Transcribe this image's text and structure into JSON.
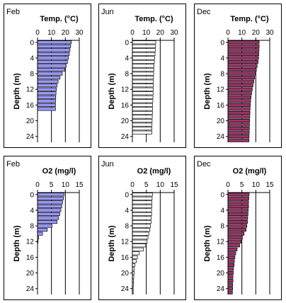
{
  "chart_data": [
    {
      "type": "bar",
      "panel_label": "Feb",
      "title": "Temp. (°C)",
      "ylabel": "Depth (m)",
      "xlim": [
        0,
        30
      ],
      "ylim": [
        25.5,
        -0.5
      ],
      "x_ticks": [
        "0",
        "10",
        "20",
        "30"
      ],
      "y_ticks": [
        "0",
        "4",
        "8",
        "12",
        "16",
        "20",
        "24"
      ],
      "bar_color": "#9999ff",
      "depths": [
        0,
        1,
        2,
        3,
        4,
        5,
        6,
        7,
        8,
        9,
        10,
        11,
        12,
        13,
        14,
        15,
        16,
        17
      ],
      "values": [
        24.3,
        23.8,
        23.3,
        22.8,
        22.2,
        21.5,
        20.6,
        19.5,
        17.8,
        16.2,
        14.8,
        14.0,
        13.6,
        13.3,
        13.1,
        13.0,
        12.9,
        12.9
      ]
    },
    {
      "type": "bar",
      "panel_label": "Jun",
      "title": "Temp. (°C)",
      "ylabel": "Depth (m)",
      "xlim": [
        0,
        30
      ],
      "ylim": [
        25.5,
        -0.5
      ],
      "x_ticks": [
        "0",
        "10",
        "20",
        "30"
      ],
      "y_ticks": [
        "0",
        "4",
        "8",
        "12",
        "16",
        "20",
        "24"
      ],
      "bar_color": "#ffffff",
      "depths": [
        0,
        1,
        2,
        3,
        4,
        5,
        6,
        7,
        8,
        9,
        10,
        11,
        12,
        13,
        14,
        15,
        16,
        17,
        18,
        19,
        20,
        21,
        22,
        23
      ],
      "values": [
        16.8,
        16.7,
        16.5,
        16.3,
        16.0,
        15.8,
        15.6,
        15.4,
        15.3,
        15.2,
        15.1,
        15.0,
        15.0,
        14.9,
        14.8,
        14.7,
        14.6,
        14.5,
        14.4,
        14.3,
        14.2,
        14.1,
        14.0,
        14.0
      ]
    },
    {
      "type": "bar",
      "panel_label": "Dec",
      "title": "Temp. (°C)",
      "ylabel": "Depth (m)",
      "xlim": [
        0,
        30
      ],
      "ylim": [
        25.5,
        -0.5
      ],
      "x_ticks": [
        "0",
        "10",
        "20",
        "30"
      ],
      "y_ticks": [
        "0",
        "4",
        "8",
        "12",
        "16",
        "20",
        "24"
      ],
      "bar_color": "#993366",
      "depths": [
        0,
        1,
        2,
        3,
        4,
        5,
        6,
        7,
        8,
        9,
        10,
        11,
        12,
        13,
        14,
        15,
        16,
        17,
        18,
        19,
        20,
        21,
        22,
        23,
        24,
        25
      ],
      "values": [
        22.4,
        22.4,
        22.3,
        22.2,
        22.0,
        21.6,
        21.0,
        20.4,
        19.9,
        19.2,
        18.6,
        18.0,
        17.5,
        17.0,
        16.6,
        16.3,
        16.1,
        15.9,
        15.8,
        15.7,
        15.6,
        15.5,
        15.4,
        15.3,
        15.2,
        15.1
      ]
    },
    {
      "type": "bar",
      "panel_label": "Feb",
      "title": "O2 (mg/l)",
      "ylabel": "Depth (m)",
      "xlim": [
        0,
        15
      ],
      "ylim": [
        25.5,
        -0.5
      ],
      "x_ticks": [
        "0",
        "5",
        "10",
        "15"
      ],
      "y_ticks": [
        "0",
        "4",
        "8",
        "12",
        "16",
        "20",
        "24"
      ],
      "bar_color": "#9999ff",
      "depths": [
        0,
        1,
        2,
        3,
        4,
        5,
        6,
        7,
        8,
        9,
        10,
        11,
        12
      ],
      "values": [
        9.5,
        9.3,
        9.0,
        8.7,
        8.4,
        8.0,
        7.6,
        7.0,
        5.2,
        3.5,
        1.8,
        0.4,
        0.2
      ]
    },
    {
      "type": "bar",
      "panel_label": "Jun",
      "title": "O2 (mg/l)",
      "ylabel": "Depth (m)",
      "xlim": [
        0,
        15
      ],
      "ylim": [
        25.5,
        -0.5
      ],
      "x_ticks": [
        "0",
        "5",
        "10",
        "15"
      ],
      "y_ticks": [
        "0",
        "4",
        "8",
        "12",
        "16",
        "20",
        "24"
      ],
      "bar_color": "#ffffff",
      "depths": [
        0,
        1,
        2,
        3,
        4,
        5,
        6,
        7,
        8,
        9,
        10,
        11,
        12,
        13,
        14,
        15,
        16,
        17,
        18,
        19,
        20,
        21,
        22,
        23,
        24,
        25
      ],
      "values": [
        7.2,
        7.1,
        7.0,
        7.0,
        6.9,
        6.9,
        6.8,
        6.7,
        6.5,
        6.3,
        5.9,
        5.6,
        5.3,
        4.8,
        4.0,
        2.5,
        1.8,
        1.4,
        0.9,
        0.7,
        0.6,
        0.5,
        0.4,
        0.4,
        0.3,
        0.3
      ]
    },
    {
      "type": "bar",
      "panel_label": "Dec",
      "title": "O2 (mg/l)",
      "ylabel": "Depth (m)",
      "xlim": [
        0,
        15
      ],
      "ylim": [
        25.5,
        -0.5
      ],
      "x_ticks": [
        "0",
        "5",
        "10",
        "15"
      ],
      "y_ticks": [
        "0",
        "4",
        "8",
        "12",
        "16",
        "20",
        "24"
      ],
      "bar_color": "#993366",
      "depths": [
        0,
        1,
        2,
        3,
        4,
        5,
        6,
        7,
        8,
        9,
        10,
        11,
        12,
        13,
        14,
        15,
        16,
        17,
        18,
        19,
        20,
        21,
        22,
        23,
        24,
        25
      ],
      "values": [
        7.6,
        7.5,
        7.4,
        7.4,
        7.3,
        7.2,
        7.1,
        7.0,
        6.8,
        6.5,
        5.8,
        5.2,
        4.8,
        4.2,
        3.3,
        2.8,
        2.5,
        2.3,
        2.2,
        2.0,
        1.9,
        1.8,
        1.8,
        1.7,
        1.7,
        1.6
      ]
    }
  ]
}
